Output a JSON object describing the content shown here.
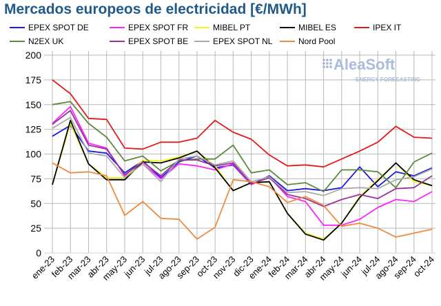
{
  "chart_data": {
    "type": "line",
    "title": "Mercados europeos de electricidad [€/MWh]",
    "xlabel": "",
    "ylabel": "",
    "ylim": [
      0,
      200
    ],
    "yticks": [
      0,
      25,
      50,
      75,
      100,
      125,
      150,
      175,
      200
    ],
    "grid": true,
    "legend_position": "top",
    "watermark": {
      "brand": "AleaSoft",
      "tagline": "ENERGY FORECASTING"
    },
    "categories": [
      "ene-23",
      "feb-23",
      "mar-23",
      "abr-23",
      "may-23",
      "jun-23",
      "jul-23",
      "ago-23",
      "sep-23",
      "oct-23",
      "nov-23",
      "dic-23",
      "ene-24",
      "feb-24",
      "mar-24",
      "abr-24",
      "may-24",
      "jun-24",
      "jul-24",
      "ago-24",
      "sep-24",
      "oct-24"
    ],
    "series": [
      {
        "name": "EPEX SPOT DE",
        "color": "#1a1adf",
        "values": [
          118,
          129,
          103,
          101,
          81,
          93,
          76,
          92,
          98,
          86,
          89,
          69,
          78,
          63,
          65,
          63,
          66,
          87,
          67,
          82,
          78,
          86
        ]
      },
      {
        "name": "EPEX SPOT FR",
        "color": "#ff22ff",
        "values": [
          131,
          148,
          111,
          106,
          78,
          90,
          75,
          90,
          88,
          84,
          90,
          69,
          77,
          57,
          52,
          28,
          28,
          34,
          46,
          54,
          52,
          62
        ]
      },
      {
        "name": "MIBEL PT",
        "color": "#f5f51a",
        "values": [
          69,
          131,
          90,
          76,
          76,
          94,
          93,
          97,
          103,
          88,
          63,
          71,
          72,
          40,
          20,
          14,
          30,
          57,
          74,
          91,
          72,
          68
        ]
      },
      {
        "name": "MIBEL ES",
        "color": "#000000",
        "values": [
          69,
          134,
          90,
          74,
          74,
          92,
          91,
          96,
          103,
          86,
          63,
          71,
          72,
          40,
          19,
          13,
          30,
          56,
          73,
          91,
          74,
          68
        ]
      },
      {
        "name": "IPEX IT",
        "color": "#e31a1a",
        "values": [
          175,
          161,
          136,
          135,
          106,
          105,
          112,
          112,
          116,
          134,
          122,
          115,
          99,
          88,
          89,
          87,
          95,
          103,
          112,
          128,
          117,
          116
        ]
      },
      {
        "name": "N2EX UK",
        "color": "#5a8a3c",
        "values": [
          150,
          153,
          131,
          117,
          93,
          98,
          83,
          93,
          95,
          95,
          109,
          81,
          84,
          69,
          71,
          62,
          84,
          84,
          82,
          66,
          92,
          101
        ]
      },
      {
        "name": "EPEX SPOT BE",
        "color": "#993399",
        "values": [
          130,
          144,
          109,
          105,
          79,
          92,
          78,
          94,
          94,
          88,
          91,
          70,
          76,
          59,
          55,
          47,
          54,
          59,
          55,
          65,
          66,
          78
        ]
      },
      {
        "name": "EPEX SPOT NL",
        "color": "#aaaaaa",
        "values": [
          126,
          137,
          101,
          98,
          76,
          90,
          72,
          95,
          98,
          89,
          93,
          72,
          77,
          61,
          62,
          58,
          65,
          66,
          65,
          74,
          77,
          85
        ]
      },
      {
        "name": "Nord Pool",
        "color": "#f08a3c",
        "values": [
          91,
          81,
          82,
          78,
          38,
          52,
          35,
          34,
          14,
          26,
          74,
          72,
          67,
          51,
          57,
          48,
          27,
          30,
          25,
          16,
          20,
          24
        ]
      }
    ]
  }
}
